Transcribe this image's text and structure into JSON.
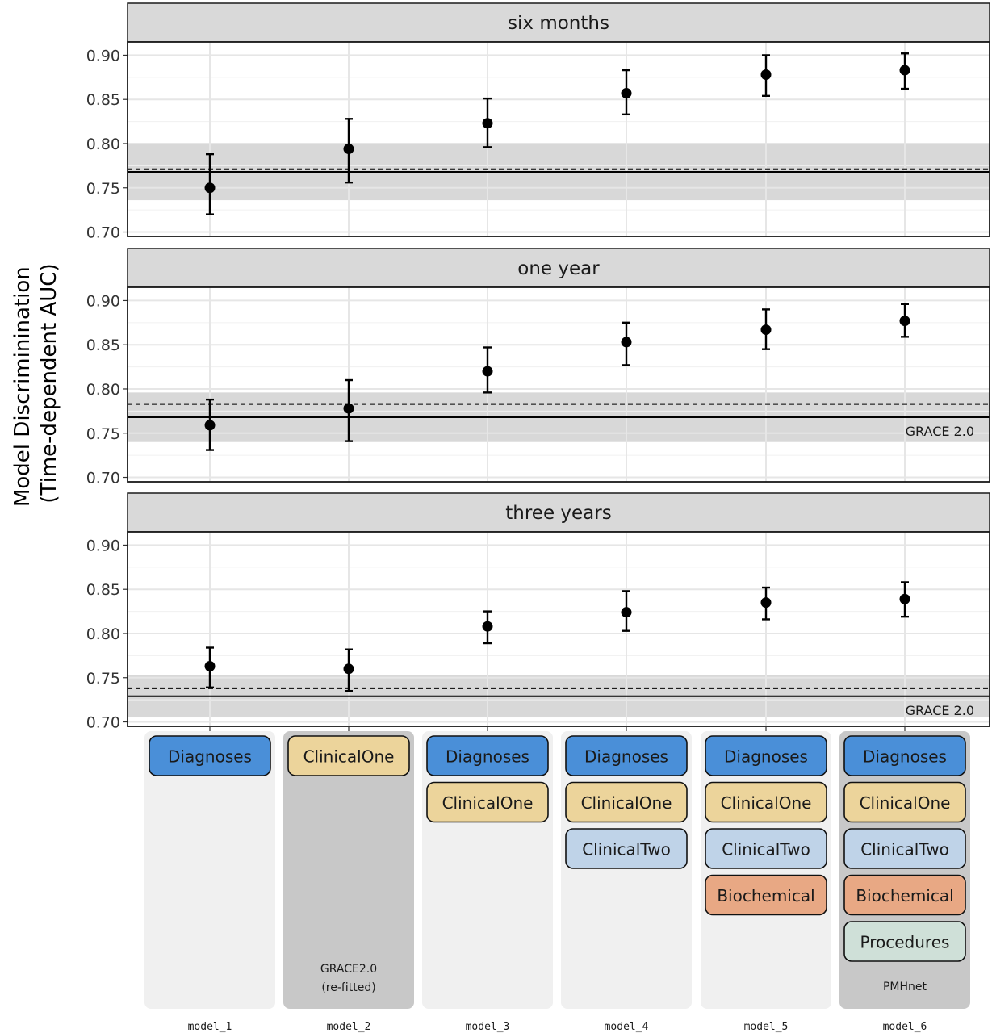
{
  "chart_data": {
    "type": "scatter",
    "y_title_lines": [
      "Model Discriminination",
      "(Time-dependent AUC)"
    ],
    "y_ticks": [
      "0.70",
      "0.75",
      "0.80",
      "0.85",
      "0.90"
    ],
    "ylim": [
      0.695,
      0.915
    ],
    "categories": [
      "model_1",
      "model_2",
      "model_3",
      "model_4",
      "model_5",
      "model_6"
    ],
    "panels": [
      {
        "title": "six months",
        "estimates": [
          0.75,
          0.794,
          0.823,
          0.857,
          0.878,
          0.883
        ],
        "lower": [
          0.72,
          0.756,
          0.796,
          0.833,
          0.854,
          0.862
        ],
        "upper": [
          0.788,
          0.828,
          0.851,
          0.883,
          0.9,
          0.902
        ],
        "reference": {
          "solid": 0.768,
          "dashed": 0.771,
          "band": [
            0.736,
            0.8
          ],
          "label": ""
        }
      },
      {
        "title": "one year",
        "estimates": [
          0.759,
          0.778,
          0.82,
          0.853,
          0.867,
          0.877
        ],
        "lower": [
          0.731,
          0.741,
          0.796,
          0.827,
          0.845,
          0.859
        ],
        "upper": [
          0.788,
          0.81,
          0.847,
          0.875,
          0.89,
          0.896
        ],
        "reference": {
          "solid": 0.768,
          "dashed": 0.783,
          "band": [
            0.74,
            0.796
          ],
          "label": "GRACE 2.0"
        }
      },
      {
        "title": "three years",
        "estimates": [
          0.763,
          0.76,
          0.808,
          0.824,
          0.835,
          0.839
        ],
        "lower": [
          0.739,
          0.735,
          0.789,
          0.803,
          0.816,
          0.819
        ],
        "upper": [
          0.784,
          0.782,
          0.825,
          0.848,
          0.852,
          0.858
        ],
        "reference": {
          "solid": 0.729,
          "dashed": 0.738,
          "band": [
            0.705,
            0.753
          ],
          "label": "GRACE 2.0"
        }
      }
    ]
  },
  "feature_groups": {
    "colors": {
      "Diagnoses": "#4a8fd8",
      "ClinicalOne": "#ecd49b",
      "ClinicalTwo": "#bfd3e8",
      "Biochemical": "#e8a884",
      "Procedures": "#cfe0d8"
    },
    "columns": [
      {
        "model": "model_1",
        "features": [
          "Diagnoses"
        ],
        "note": [],
        "shade": "light"
      },
      {
        "model": "model_2",
        "features": [
          "ClinicalOne"
        ],
        "note": [
          "GRACE2.0",
          "(re-fitted)"
        ],
        "shade": "dark"
      },
      {
        "model": "model_3",
        "features": [
          "Diagnoses",
          "ClinicalOne"
        ],
        "note": [],
        "shade": "light"
      },
      {
        "model": "model_4",
        "features": [
          "Diagnoses",
          "ClinicalOne",
          "ClinicalTwo"
        ],
        "note": [],
        "shade": "light"
      },
      {
        "model": "model_5",
        "features": [
          "Diagnoses",
          "ClinicalOne",
          "ClinicalTwo",
          "Biochemical"
        ],
        "note": [],
        "shade": "light"
      },
      {
        "model": "model_6",
        "features": [
          "Diagnoses",
          "ClinicalOne",
          "ClinicalTwo",
          "Biochemical",
          "Procedures"
        ],
        "note": [
          "PMHnet"
        ],
        "shade": "dark"
      }
    ]
  }
}
